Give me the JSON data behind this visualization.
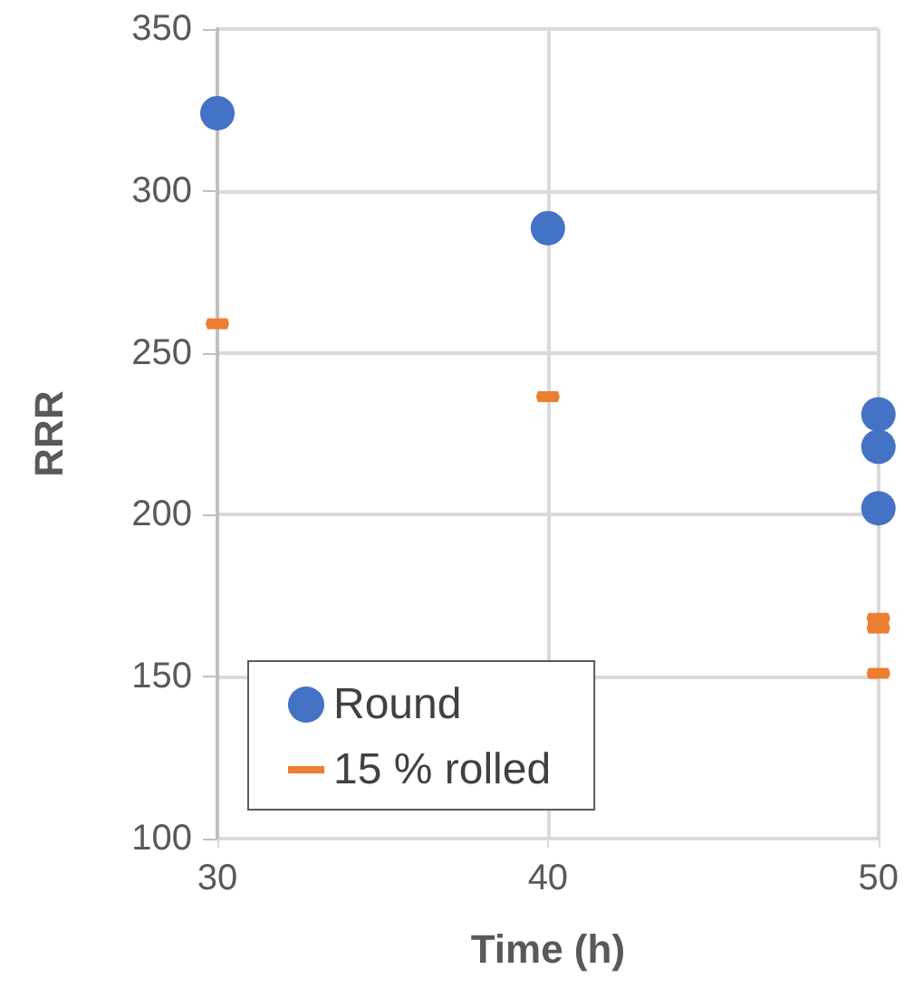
{
  "chart_data": {
    "type": "scatter",
    "xlabel": "Time (h)",
    "ylabel": "RRR",
    "xlim": [
      30,
      50
    ],
    "xticks": [
      30,
      40,
      50
    ],
    "ylim": [
      100,
      350
    ],
    "yticks": [
      100,
      150,
      200,
      250,
      300,
      350
    ],
    "grid": true,
    "legend": "bottom left",
    "series": [
      {
        "name": "Round",
        "color": "#4472c4",
        "marker": "circle",
        "x": [
          30,
          40,
          50,
          50,
          50
        ],
        "values": [
          324,
          288.5,
          231,
          221,
          202
        ]
      },
      {
        "name": "15 % rolled",
        "color": "#ed7d31",
        "x": [
          30,
          40,
          50,
          50,
          50
        ],
        "values": [
          259,
          236.5,
          168,
          165,
          151
        ]
      }
    ]
  }
}
